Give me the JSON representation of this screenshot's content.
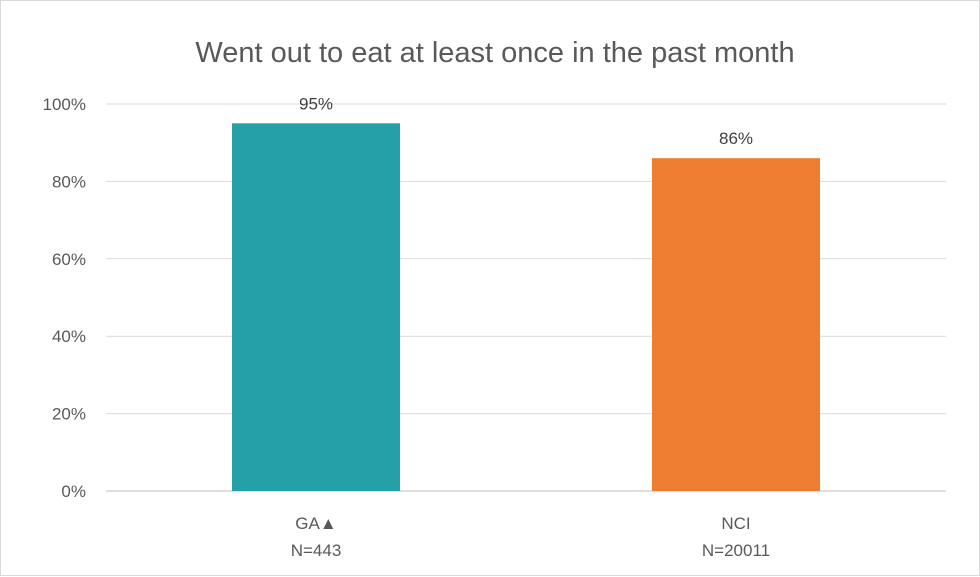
{
  "chart_data": {
    "type": "bar",
    "title": "Went out to eat at least once in the past month",
    "categories": [
      {
        "name": "GA▲",
        "n": "N=443"
      },
      {
        "name": "NCI",
        "n": "N=20011"
      }
    ],
    "values": [
      95,
      86
    ],
    "data_labels": [
      "95%",
      "86%"
    ],
    "colors": [
      "#23a0a8",
      "#ed7d31"
    ],
    "y_ticks": [
      "0%",
      "20%",
      "40%",
      "60%",
      "80%",
      "100%"
    ],
    "ylim": [
      0,
      100
    ],
    "grid": true,
    "legend": "none",
    "xlabel": "",
    "ylabel": ""
  }
}
